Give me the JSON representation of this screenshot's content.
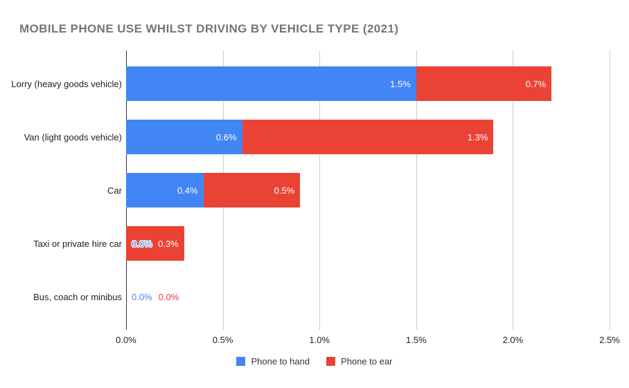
{
  "page": {
    "background": "#ffffff"
  },
  "chart_data": {
    "type": "bar",
    "orientation": "horizontal",
    "stacked": true,
    "title": "MOBILE PHONE USE WHILST DRIVING BY VEHICLE TYPE (2021)",
    "title_color": "#757575",
    "categories": [
      "Lorry (heavy goods vehicle)",
      "Van (light goods vehicle)",
      "Car",
      "Taxi or private hire car",
      "Bus, coach or minibus"
    ],
    "series": [
      {
        "name": "Phone to hand",
        "color": "#4285f4",
        "values": [
          1.5,
          0.6,
          0.4,
          0.0,
          0.0
        ],
        "labels": [
          "1.5%",
          "0.6%",
          "0.4%",
          "0.0%",
          "0.0%"
        ]
      },
      {
        "name": "Phone to ear",
        "color": "#ea4335",
        "values": [
          0.7,
          1.3,
          0.5,
          0.3,
          0.0
        ],
        "labels": [
          "0.7%",
          "1.3%",
          "0.5%",
          "0.3%",
          "0.0%"
        ]
      }
    ],
    "totals_labels": [
      "2.2%",
      "1.9%",
      "0.9%",
      "0.3%",
      "0.0%"
    ],
    "x_axis": {
      "tick_labels": [
        "0.0%",
        "0.5%",
        "1.0%",
        "1.5%",
        "2.0%",
        "2.5%"
      ],
      "tick_values": [
        0,
        0.5,
        1.0,
        1.5,
        2.0,
        2.5
      ],
      "min": 0,
      "max": 2.5
    },
    "xlim": [
      0,
      2.5
    ],
    "grid": true,
    "gridline_color": "#cccccc",
    "axis_line_color": "#333333",
    "value_label_color_inside": "#ffffff",
    "legend_position": "bottom"
  }
}
